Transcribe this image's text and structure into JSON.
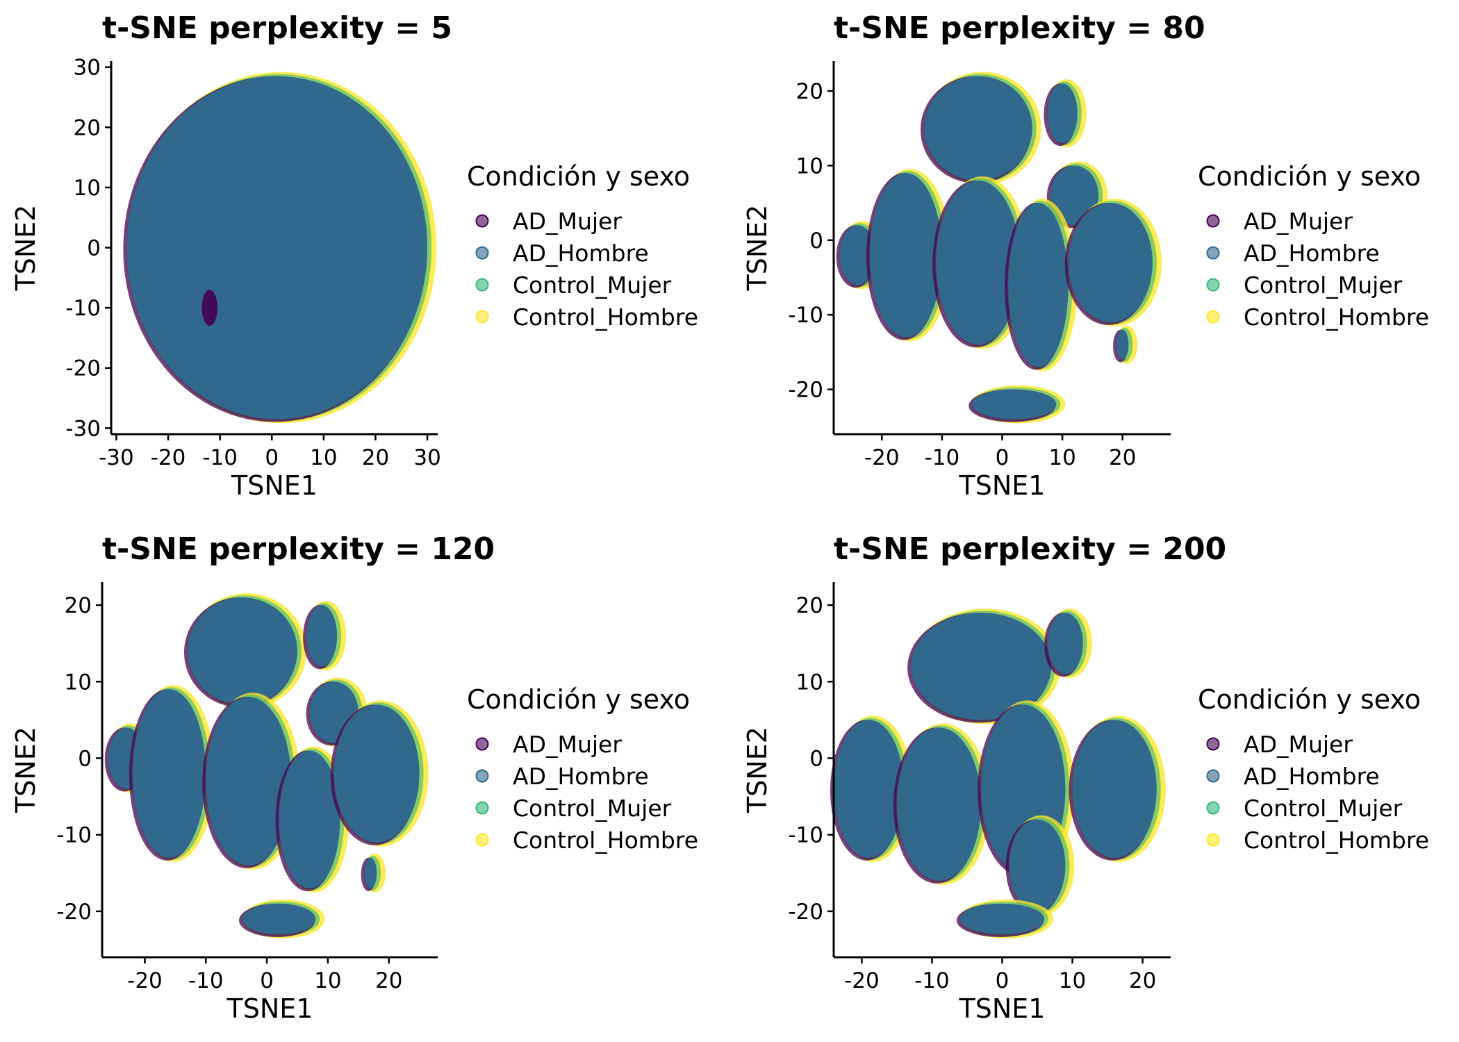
{
  "chart_data": [
    {
      "type": "scatter",
      "title": "t-SNE perplexity = 5",
      "xlabel": "TSNE1",
      "ylabel": "TSNE2",
      "xlim": [
        -31,
        32
      ],
      "ylim": [
        -31,
        31
      ],
      "xticks": [
        -30,
        -20,
        -10,
        0,
        10,
        20,
        30
      ],
      "yticks": [
        -30,
        -20,
        -10,
        0,
        10,
        20,
        30
      ],
      "legend_title": "Condición y sexo",
      "legend_placement": "right",
      "series": [
        {
          "name": "AD_Mujer",
          "color": "#440154"
        },
        {
          "name": "AD_Hombre",
          "color": "#31688e"
        },
        {
          "name": "Control_Mujer",
          "color": "#35b779"
        },
        {
          "name": "Control_Hombre",
          "color": "#fde725"
        }
      ],
      "clusters": [
        {
          "cx": 1,
          "cy": 0,
          "rx": 29,
          "ry": 28.5
        }
      ],
      "minor_clusters": [
        {
          "series": "AD_Mujer",
          "cx": -12,
          "cy": -10,
          "rx": 1.5,
          "ry": 3
        }
      ]
    },
    {
      "type": "scatter",
      "title": "t-SNE perplexity = 80",
      "xlabel": "TSNE1",
      "ylabel": "TSNE2",
      "xlim": [
        -28,
        28
      ],
      "ylim": [
        -26,
        24
      ],
      "xticks": [
        -20,
        -10,
        0,
        10,
        20
      ],
      "yticks": [
        -20,
        -10,
        0,
        10,
        20
      ],
      "legend_title": "Condición y sexo",
      "legend_placement": "right",
      "series": [
        {
          "name": "AD_Mujer",
          "color": "#440154"
        },
        {
          "name": "AD_Hombre",
          "color": "#31688e"
        },
        {
          "name": "Control_Mujer",
          "color": "#35b779"
        },
        {
          "name": "Control_Hombre",
          "color": "#fde725"
        }
      ],
      "clusters": [
        {
          "cx": -4,
          "cy": 15,
          "rx": 9,
          "ry": 7
        },
        {
          "cx": 10,
          "cy": 17,
          "rx": 2.5,
          "ry": 4
        },
        {
          "cx": 12,
          "cy": 6,
          "rx": 4,
          "ry": 4
        },
        {
          "cx": -24,
          "cy": -2,
          "rx": 3,
          "ry": 4
        },
        {
          "cx": -16,
          "cy": -2,
          "rx": 6,
          "ry": 11
        },
        {
          "cx": -4,
          "cy": -3,
          "rx": 7,
          "ry": 11
        },
        {
          "cx": 6,
          "cy": -6,
          "rx": 5,
          "ry": 11
        },
        {
          "cx": 18,
          "cy": -3,
          "rx": 7,
          "ry": 8
        },
        {
          "cx": 20,
          "cy": -14,
          "rx": 1,
          "ry": 2
        },
        {
          "cx": 2,
          "cy": -22,
          "rx": 7,
          "ry": 2
        }
      ]
    },
    {
      "type": "scatter",
      "title": "t-SNE perplexity = 120",
      "xlabel": "TSNE1",
      "ylabel": "TSNE2",
      "xlim": [
        -27,
        28
      ],
      "ylim": [
        -26,
        23
      ],
      "xticks": [
        -20,
        -10,
        0,
        10,
        20
      ],
      "yticks": [
        -20,
        -10,
        0,
        10,
        20
      ],
      "legend_title": "Condición y sexo",
      "legend_placement": "right",
      "series": [
        {
          "name": "AD_Mujer",
          "color": "#440154"
        },
        {
          "name": "AD_Hombre",
          "color": "#31688e"
        },
        {
          "name": "Control_Mujer",
          "color": "#35b779"
        },
        {
          "name": "Control_Hombre",
          "color": "#fde725"
        }
      ],
      "clusters": [
        {
          "cx": -4,
          "cy": 14,
          "rx": 9,
          "ry": 7
        },
        {
          "cx": 9,
          "cy": 16,
          "rx": 2.5,
          "ry": 4
        },
        {
          "cx": 11,
          "cy": 6,
          "rx": 4,
          "ry": 4
        },
        {
          "cx": -23,
          "cy": 0,
          "rx": 3,
          "ry": 4
        },
        {
          "cx": -16,
          "cy": -2,
          "rx": 6,
          "ry": 11
        },
        {
          "cx": -3,
          "cy": -3,
          "rx": 7,
          "ry": 11
        },
        {
          "cx": 7,
          "cy": -8,
          "rx": 5,
          "ry": 9
        },
        {
          "cx": 18,
          "cy": -2,
          "rx": 7,
          "ry": 9
        },
        {
          "cx": 17,
          "cy": -15,
          "rx": 1,
          "ry": 2
        },
        {
          "cx": 2,
          "cy": -21,
          "rx": 6,
          "ry": 2
        }
      ]
    },
    {
      "type": "scatter",
      "title": "t-SNE perplexity = 200",
      "xlabel": "TSNE1",
      "ylabel": "TSNE2",
      "xlim": [
        -24,
        24
      ],
      "ylim": [
        -26,
        23
      ],
      "xticks": [
        -20,
        -10,
        0,
        10,
        20
      ],
      "yticks": [
        -20,
        -10,
        0,
        10,
        20
      ],
      "legend_title": "Condición y sexo",
      "legend_placement": "right",
      "series": [
        {
          "name": "AD_Mujer",
          "color": "#440154"
        },
        {
          "name": "AD_Hombre",
          "color": "#31688e"
        },
        {
          "name": "Control_Mujer",
          "color": "#35b779"
        },
        {
          "name": "Control_Hombre",
          "color": "#fde725"
        }
      ],
      "clusters": [
        {
          "cx": -3,
          "cy": 12,
          "rx": 10,
          "ry": 7
        },
        {
          "cx": 9,
          "cy": 15,
          "rx": 2.5,
          "ry": 4
        },
        {
          "cx": -19,
          "cy": -4,
          "rx": 5,
          "ry": 9
        },
        {
          "cx": -9,
          "cy": -6,
          "rx": 6,
          "ry": 10
        },
        {
          "cx": 3,
          "cy": -4,
          "rx": 6,
          "ry": 11
        },
        {
          "cx": 5,
          "cy": -14,
          "rx": 4,
          "ry": 6
        },
        {
          "cx": 16,
          "cy": -4,
          "rx": 6,
          "ry": 9
        },
        {
          "cx": 0,
          "cy": -21,
          "rx": 6,
          "ry": 2
        }
      ]
    }
  ]
}
